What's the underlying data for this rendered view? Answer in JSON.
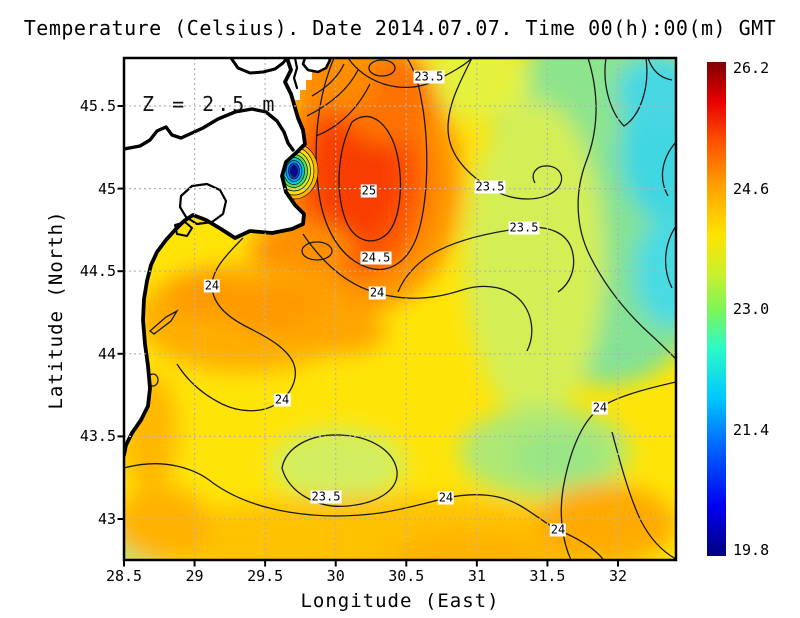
{
  "title": "Temperature (Celsius). Date 2014.07.07. Time 00(h):00(m) GMT",
  "chart_data": {
    "type": "heatmap",
    "subtype": "filled-contour-map-with-coastline",
    "title": "Temperature (Celsius). Date 2014.07.07. Time 00(h):00(m) GMT",
    "xlabel": "Longitude (East)",
    "ylabel": "Latitude (North)",
    "xlim": [
      28.5,
      32.41
    ],
    "ylim": [
      42.75,
      45.79
    ],
    "x_ticks": [
      28.5,
      29,
      29.5,
      30,
      30.5,
      31,
      31.5,
      32
    ],
    "x_tick_labels": [
      "28.5",
      "29",
      "29.5",
      "30",
      "30.5",
      "31",
      "31.5",
      "32"
    ],
    "y_ticks": [
      45.5,
      45,
      44.5,
      44,
      43.5,
      43
    ],
    "y_tick_labels": [
      "45.5",
      "45",
      "44.5",
      "44",
      "43.5",
      "43"
    ],
    "grid": true,
    "depth_annotation": "Z = 2.5 m",
    "contour_interval": 0.5,
    "colorbar": {
      "min": 19.8,
      "max": 26.2,
      "ticks": [
        26.2,
        24.6,
        23.0,
        21.4,
        19.8
      ],
      "tick_labels": [
        "26.2",
        "24.6",
        "23.0",
        "21.4",
        "19.8"
      ],
      "colormap": "jet",
      "color_min_hex": "#00007F",
      "color_mid_hex": "#7DF556",
      "color_max_hex": "#7F0000"
    },
    "contour_labels": [
      {
        "text": "23.5",
        "lon": 30.66,
        "lat": 45.675
      },
      {
        "text": "25",
        "lon": 30.235,
        "lat": 44.985
      },
      {
        "text": "23.5",
        "lon": 31.093,
        "lat": 45.01
      },
      {
        "text": "23.5",
        "lon": 31.334,
        "lat": 44.76
      },
      {
        "text": "24.5",
        "lon": 30.285,
        "lat": 44.58
      },
      {
        "text": "24",
        "lon": 30.293,
        "lat": 44.368
      },
      {
        "text": "24",
        "lon": 29.123,
        "lat": 44.41
      },
      {
        "text": "24",
        "lon": 29.62,
        "lat": 43.72
      },
      {
        "text": "24",
        "lon": 31.872,
        "lat": 43.672
      },
      {
        "text": "24",
        "lon": 30.781,
        "lat": 43.127
      },
      {
        "text": "24",
        "lon": 31.575,
        "lat": 42.933
      },
      {
        "text": "23.5",
        "lon": 29.931,
        "lat": 43.133
      }
    ],
    "features": [
      {
        "name": "warm-core",
        "lon": 30.15,
        "lat": 45.05,
        "approx_temp_c": 25.7
      },
      {
        "name": "cold-river-plume",
        "lon": 29.72,
        "lat": 45.1,
        "approx_temp_c": 19.8
      },
      {
        "name": "cool-water-east",
        "lon": 32.3,
        "lat": 45.0,
        "approx_temp_c": 22.3
      },
      {
        "name": "cool-patch-south",
        "lon": 31.5,
        "lat": 43.4,
        "approx_temp_c": 23.3
      },
      {
        "name": "land-mask",
        "description": "white land with black coastline in upper-left quadrant"
      }
    ]
  }
}
